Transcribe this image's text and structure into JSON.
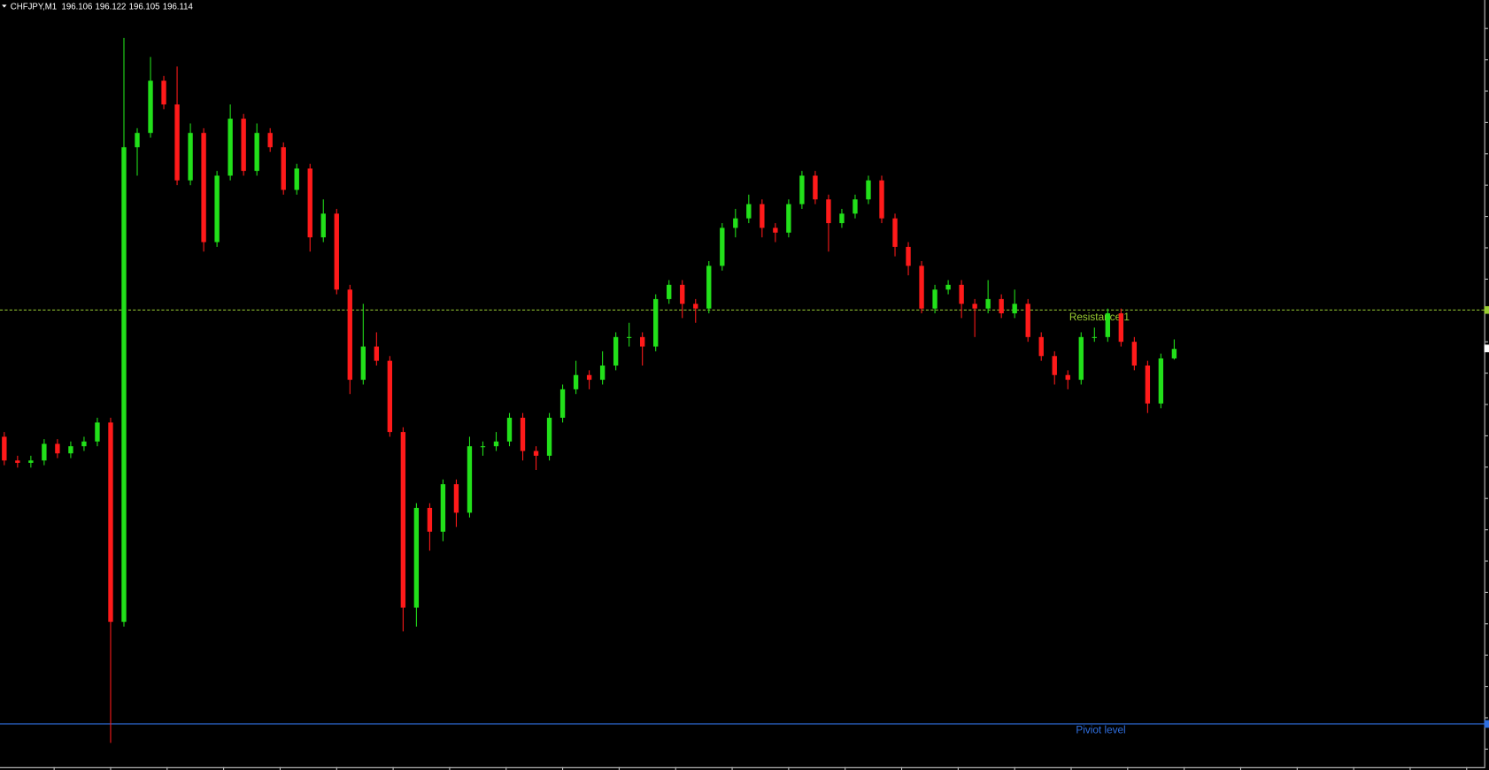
{
  "chart_data": {
    "type": "candlestick",
    "symbol": "CHFJPY,M1",
    "up_color": "#22e01a",
    "down_color": "#ff1a1a",
    "ylim": [
      195.76,
      196.408
    ],
    "open": [
      196.04,
      196.02,
      196.018,
      196.02,
      196.034,
      196.026,
      196.032,
      196.036,
      196.052,
      195.884,
      196.284,
      196.296,
      196.34,
      196.32,
      196.256,
      196.296,
      196.204,
      196.26,
      196.308,
      196.264,
      196.296,
      196.284,
      196.248,
      196.266,
      196.208,
      196.228,
      196.164,
      196.088,
      196.116,
      196.104,
      196.044,
      195.896,
      195.98,
      195.96,
      196.0,
      195.976,
      196.032,
      196.032,
      196.036,
      196.056,
      196.028,
      196.024,
      196.056,
      196.08,
      196.092,
      196.088,
      196.1,
      196.124,
      196.124,
      196.116,
      196.156,
      196.168,
      196.152,
      196.148,
      196.184,
      196.216,
      196.224,
      196.236,
      196.216,
      196.212,
      196.236,
      196.26,
      196.24,
      196.22,
      196.228,
      196.24,
      196.256,
      196.224,
      196.2,
      196.184,
      196.148,
      196.164,
      196.168,
      196.152,
      196.148,
      196.156,
      196.144,
      196.152,
      196.124,
      196.108,
      196.092,
      196.088,
      196.124,
      196.124,
      196.144,
      196.12,
      196.1,
      196.068,
      196.106
    ],
    "high": [
      196.044,
      196.024,
      196.024,
      196.038,
      196.038,
      196.036,
      196.04,
      196.056,
      196.056,
      196.376,
      196.3,
      196.36,
      196.344,
      196.352,
      196.304,
      196.3,
      196.264,
      196.32,
      196.312,
      196.304,
      196.3,
      196.288,
      196.27,
      196.27,
      196.24,
      196.232,
      196.168,
      196.152,
      196.128,
      196.108,
      196.048,
      195.984,
      195.984,
      196.004,
      196.004,
      196.04,
      196.036,
      196.044,
      196.06,
      196.06,
      196.032,
      196.06,
      196.084,
      196.104,
      196.096,
      196.112,
      196.128,
      196.136,
      196.128,
      196.16,
      196.172,
      196.172,
      196.156,
      196.188,
      196.22,
      196.232,
      196.244,
      196.24,
      196.22,
      196.24,
      196.264,
      196.264,
      196.244,
      196.232,
      196.244,
      196.26,
      196.26,
      196.228,
      196.204,
      196.188,
      196.168,
      196.172,
      196.172,
      196.156,
      196.172,
      196.16,
      196.164,
      196.156,
      196.128,
      196.112,
      196.096,
      196.128,
      196.132,
      196.148,
      196.148,
      196.124,
      196.104,
      196.11,
      196.122
    ],
    "low": [
      196.016,
      196.014,
      196.014,
      196.016,
      196.022,
      196.022,
      196.028,
      196.032,
      195.782,
      195.88,
      196.26,
      196.292,
      196.316,
      196.252,
      196.252,
      196.196,
      196.2,
      196.256,
      196.26,
      196.26,
      196.28,
      196.244,
      196.244,
      196.196,
      196.204,
      196.16,
      196.076,
      196.084,
      196.1,
      196.04,
      195.876,
      195.88,
      195.944,
      195.952,
      195.964,
      195.972,
      196.024,
      196.028,
      196.032,
      196.02,
      196.012,
      196.02,
      196.052,
      196.076,
      196.08,
      196.084,
      196.096,
      196.116,
      196.1,
      196.112,
      196.152,
      196.14,
      196.136,
      196.144,
      196.18,
      196.208,
      196.22,
      196.208,
      196.204,
      196.208,
      196.232,
      196.236,
      196.196,
      196.216,
      196.224,
      196.236,
      196.22,
      196.192,
      196.176,
      196.144,
      196.144,
      196.16,
      196.14,
      196.124,
      196.144,
      196.14,
      196.14,
      196.12,
      196.104,
      196.084,
      196.08,
      196.084,
      196.12,
      196.12,
      196.116,
      196.096,
      196.06,
      196.064,
      196.105
    ],
    "close": [
      196.02,
      196.018,
      196.02,
      196.034,
      196.026,
      196.032,
      196.036,
      196.052,
      195.884,
      196.284,
      196.296,
      196.34,
      196.32,
      196.256,
      196.296,
      196.204,
      196.26,
      196.308,
      196.264,
      196.296,
      196.284,
      196.248,
      196.266,
      196.208,
      196.228,
      196.164,
      196.088,
      196.116,
      196.104,
      196.044,
      195.896,
      195.98,
      195.96,
      196.0,
      195.976,
      196.032,
      196.032,
      196.036,
      196.056,
      196.028,
      196.024,
      196.056,
      196.08,
      196.092,
      196.088,
      196.1,
      196.124,
      196.124,
      196.116,
      196.156,
      196.168,
      196.152,
      196.148,
      196.184,
      196.216,
      196.224,
      196.236,
      196.216,
      196.212,
      196.236,
      196.26,
      196.24,
      196.22,
      196.228,
      196.24,
      196.256,
      196.224,
      196.2,
      196.184,
      196.148,
      196.164,
      196.168,
      196.152,
      196.148,
      196.156,
      196.144,
      196.152,
      196.124,
      196.108,
      196.092,
      196.088,
      196.124,
      196.124,
      196.144,
      196.12,
      196.1,
      196.068,
      196.106,
      196.114
    ],
    "levels": [
      {
        "name": "Resistance 1",
        "value": 196.147,
        "color": "#9acd32",
        "dashed": true
      },
      {
        "name": "Piviot level",
        "value": 195.798,
        "color": "#2f6fe0",
        "dashed": false
      }
    ]
  }
}
